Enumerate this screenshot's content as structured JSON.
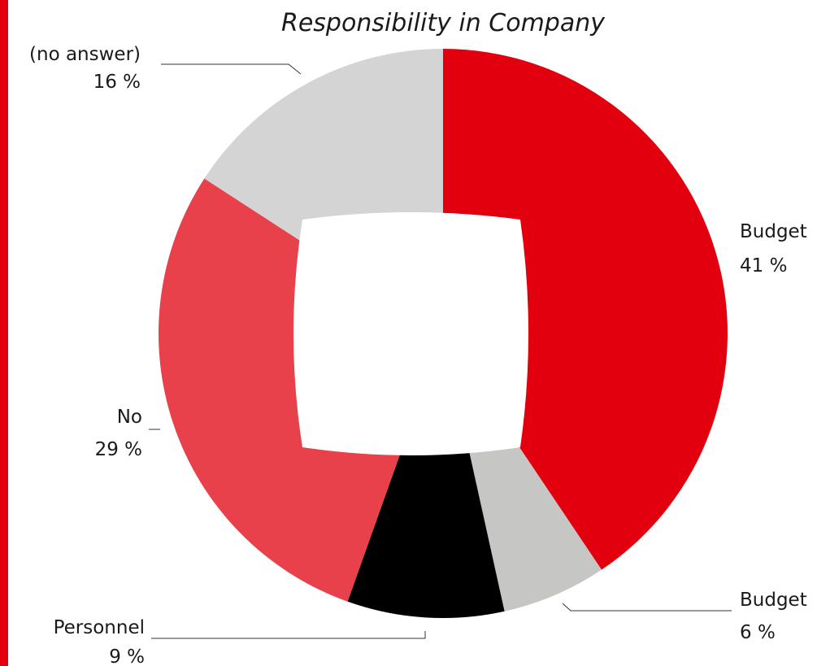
{
  "chart_data": {
    "type": "pie",
    "title": "Responsibility in Company",
    "legend_placement": "labels-outside",
    "slices": [
      {
        "label": "Budget",
        "value_label": "41 %",
        "value": 41,
        "color": "#e2000f"
      },
      {
        "label": "Budget",
        "value_label": "6 %",
        "value": 6,
        "color": "#c6c6c5"
      },
      {
        "label": "Personnel",
        "value_label": "9 %",
        "value": 9,
        "color": "#000000"
      },
      {
        "label": "No",
        "value_label": "29 %",
        "value": 29,
        "color": "#e9414b"
      },
      {
        "label": "(no answer)",
        "value_label": "16 %",
        "value": 16,
        "color": "#d3d4d3"
      }
    ]
  },
  "colors": {
    "accent_bar": "#e2000f",
    "background": "#ffffff"
  }
}
